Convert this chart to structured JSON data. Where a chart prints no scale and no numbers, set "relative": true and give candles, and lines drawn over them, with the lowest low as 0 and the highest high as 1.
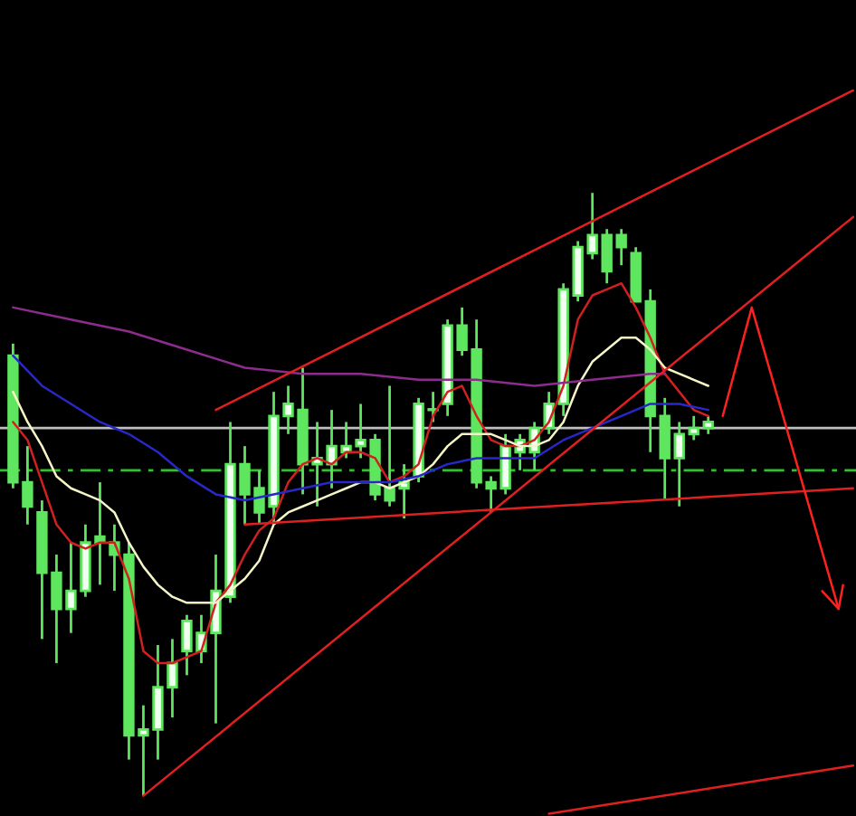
{
  "chart_data": {
    "type": "candlestick",
    "relative": true,
    "color": "#5ee65e",
    "categories": [
      null,
      null,
      null,
      null,
      null,
      null,
      null,
      null,
      null,
      null,
      null,
      null,
      null,
      null,
      null,
      null,
      null,
      null,
      null,
      null,
      null,
      null,
      null,
      null,
      null,
      null,
      null,
      null,
      null,
      null,
      null,
      null,
      null,
      null,
      null,
      null,
      null,
      null,
      null,
      null,
      null,
      null,
      null,
      null,
      null,
      null,
      null,
      null,
      null,
      null,
      null,
      null,
      null,
      null,
      null,
      null,
      null,
      null,
      null
    ],
    "ohlc": [
      [
        0.73,
        0.75,
        0.51,
        0.52
      ],
      [
        0.52,
        0.58,
        0.45,
        0.48
      ],
      [
        0.47,
        0.49,
        0.26,
        0.37
      ],
      [
        0.37,
        0.4,
        0.22,
        0.31
      ],
      [
        0.31,
        0.42,
        0.27,
        0.34
      ],
      [
        0.34,
        0.45,
        0.33,
        0.42
      ],
      [
        0.43,
        0.52,
        0.35,
        0.42
      ],
      [
        0.42,
        0.45,
        0.34,
        0.4
      ],
      [
        0.4,
        0.42,
        0.06,
        0.1
      ],
      [
        0.1,
        0.15,
        0.0,
        0.11
      ],
      [
        0.11,
        0.25,
        0.06,
        0.18
      ],
      [
        0.18,
        0.26,
        0.13,
        0.22
      ],
      [
        0.24,
        0.3,
        0.2,
        0.29
      ],
      [
        0.24,
        0.3,
        0.22,
        0.27
      ],
      [
        0.27,
        0.4,
        0.12,
        0.34
      ],
      [
        0.33,
        0.62,
        0.32,
        0.55
      ],
      [
        0.55,
        0.58,
        0.45,
        0.5
      ],
      [
        0.51,
        0.54,
        0.45,
        0.47
      ],
      [
        0.48,
        0.67,
        0.45,
        0.63
      ],
      [
        0.63,
        0.68,
        0.6,
        0.65
      ],
      [
        0.64,
        0.71,
        0.5,
        0.55
      ],
      [
        0.55,
        0.62,
        0.48,
        0.56
      ],
      [
        0.55,
        0.64,
        0.51,
        0.58
      ],
      [
        0.57,
        0.62,
        0.56,
        0.58
      ],
      [
        0.58,
        0.65,
        0.56,
        0.59
      ],
      [
        0.59,
        0.6,
        0.49,
        0.5
      ],
      [
        0.51,
        0.68,
        0.48,
        0.49
      ],
      [
        0.51,
        0.55,
        0.46,
        0.52
      ],
      [
        0.53,
        0.66,
        0.52,
        0.65
      ],
      [
        0.64,
        0.67,
        0.62,
        0.64
      ],
      [
        0.65,
        0.79,
        0.63,
        0.78
      ],
      [
        0.78,
        0.81,
        0.73,
        0.74
      ],
      [
        0.74,
        0.79,
        0.51,
        0.52
      ],
      [
        0.52,
        0.53,
        0.47,
        0.51
      ],
      [
        0.51,
        0.6,
        0.5,
        0.58
      ],
      [
        0.57,
        0.6,
        0.54,
        0.59
      ],
      [
        0.57,
        0.62,
        0.54,
        0.61
      ],
      [
        0.61,
        0.67,
        0.6,
        0.65
      ],
      [
        0.65,
        0.85,
        0.63,
        0.84
      ],
      [
        0.83,
        0.92,
        0.82,
        0.91
      ],
      [
        0.9,
        1.0,
        0.89,
        0.93
      ],
      [
        0.93,
        0.94,
        0.85,
        0.87
      ],
      [
        0.93,
        0.94,
        0.88,
        0.91
      ],
      [
        0.9,
        0.91,
        0.82,
        0.82
      ],
      [
        0.82,
        0.84,
        0.57,
        0.63
      ],
      [
        0.63,
        0.66,
        0.49,
        0.56
      ],
      [
        0.56,
        0.62,
        0.48,
        0.6
      ],
      [
        0.6,
        0.63,
        0.59,
        0.61
      ],
      [
        0.61,
        0.63,
        0.6,
        0.62
      ],
      null,
      null,
      null,
      null,
      null,
      null,
      null,
      null,
      null,
      null
    ],
    "series": [
      {
        "type": "line",
        "color": "#d02020",
        "values": [
          0.62,
          0.59,
          0.52,
          0.45,
          0.42,
          0.41,
          0.42,
          0.42,
          0.36,
          0.24,
          0.22,
          0.22,
          0.23,
          0.24,
          0.32,
          0.35,
          0.4,
          0.44,
          0.46,
          0.52,
          0.55,
          0.56,
          0.55,
          0.57,
          0.57,
          0.56,
          0.52,
          0.53,
          0.55,
          0.63,
          0.67,
          0.68,
          0.63,
          0.59,
          0.58,
          0.58,
          0.59,
          0.62,
          0.68,
          0.79,
          0.83,
          0.84,
          0.85,
          0.81,
          0.76,
          0.7,
          0.67,
          0.64,
          0.63,
          null,
          null,
          null,
          null,
          null,
          null,
          null,
          null,
          null,
          null
        ]
      },
      {
        "type": "line",
        "color": "#f5f5c8",
        "values": [
          0.67,
          0.62,
          0.58,
          0.53,
          0.51,
          0.5,
          0.49,
          0.47,
          0.42,
          0.38,
          0.35,
          0.33,
          0.32,
          0.32,
          0.32,
          0.34,
          0.36,
          0.39,
          0.45,
          0.47,
          0.48,
          0.49,
          0.5,
          0.51,
          0.52,
          0.52,
          0.51,
          0.52,
          0.53,
          0.55,
          0.58,
          0.6,
          0.6,
          0.6,
          0.59,
          0.58,
          0.58,
          0.59,
          0.62,
          0.68,
          0.72,
          0.74,
          0.76,
          0.76,
          0.74,
          0.71,
          0.7,
          0.69,
          0.68,
          null,
          null,
          null,
          null,
          null,
          null,
          null,
          null,
          null,
          null
        ]
      },
      {
        "type": "line",
        "color": "#2828c8",
        "values": [
          0.73,
          null,
          0.68,
          null,
          0.65,
          null,
          0.62,
          null,
          0.6,
          null,
          0.57,
          null,
          0.53,
          null,
          0.5,
          null,
          0.49,
          null,
          0.5,
          null,
          0.51,
          null,
          0.52,
          null,
          0.52,
          null,
          0.52,
          null,
          0.53,
          null,
          0.55,
          null,
          0.56,
          null,
          0.56,
          null,
          0.56,
          null,
          0.59,
          null,
          0.61,
          null,
          0.63,
          null,
          0.65,
          null,
          0.65,
          null,
          0.64,
          null,
          null,
          null,
          null,
          null,
          null,
          null,
          null,
          null,
          null
        ]
      },
      {
        "type": "line",
        "color": "#8c2c8c",
        "values": [
          0.81,
          null,
          null,
          null,
          0.79,
          null,
          null,
          null,
          0.77,
          null,
          null,
          null,
          0.74,
          null,
          null,
          null,
          0.71,
          null,
          null,
          null,
          0.7,
          null,
          null,
          null,
          0.7,
          null,
          null,
          null,
          0.69,
          null,
          null,
          null,
          0.69,
          null,
          null,
          null,
          0.68,
          null,
          null,
          null,
          0.69,
          null,
          null,
          null,
          0.7,
          0.7,
          null,
          null,
          null,
          null,
          null,
          null,
          null,
          null,
          null,
          null,
          null,
          null,
          null
        ]
      },
      {
        "type": "line",
        "color": "#e02020",
        "values": [
          null,
          null,
          null,
          null,
          null,
          null,
          null,
          null,
          null,
          null,
          null,
          null,
          null,
          null,
          0.64,
          null,
          null,
          null,
          null,
          null,
          null,
          null,
          null,
          null,
          null,
          null,
          null,
          null,
          null,
          null,
          null,
          null,
          null,
          null,
          null,
          null,
          null,
          null,
          null,
          null,
          null,
          null,
          null,
          null,
          null,
          null,
          null,
          null,
          null,
          null,
          null,
          null,
          null,
          null,
          null,
          null,
          null,
          null,
          1.17
        ]
      },
      {
        "type": "line",
        "color": "#e02020",
        "values": [
          null,
          null,
          null,
          null,
          null,
          null,
          null,
          null,
          null,
          0.0,
          null,
          null,
          null,
          null,
          null,
          null,
          null,
          null,
          null,
          null,
          null,
          null,
          null,
          null,
          null,
          null,
          null,
          null,
          null,
          null,
          null,
          null,
          null,
          null,
          null,
          null,
          null,
          null,
          null,
          null,
          null,
          null,
          null,
          null,
          null,
          null,
          null,
          null,
          null,
          null,
          null,
          null,
          null,
          null,
          null,
          null,
          null,
          null,
          0.96
        ]
      },
      {
        "type": "line",
        "color": "#e02020",
        "values": [
          null,
          null,
          null,
          null,
          null,
          null,
          null,
          null,
          null,
          null,
          null,
          null,
          null,
          null,
          null,
          null,
          0.45,
          null,
          null,
          null,
          null,
          null,
          null,
          null,
          null,
          null,
          null,
          null,
          null,
          null,
          null,
          null,
          null,
          null,
          null,
          null,
          null,
          null,
          null,
          null,
          null,
          null,
          null,
          null,
          null,
          null,
          null,
          null,
          null,
          null,
          null,
          null,
          null,
          null,
          null,
          null,
          null,
          null,
          0.51
        ]
      },
      {
        "type": "line",
        "color": "#e02020",
        "values": [
          null,
          null,
          null,
          null,
          null,
          null,
          null,
          null,
          null,
          null,
          null,
          null,
          null,
          null,
          null,
          null,
          null,
          null,
          null,
          null,
          null,
          null,
          null,
          null,
          null,
          null,
          null,
          null,
          null,
          null,
          null,
          null,
          null,
          null,
          null,
          null,
          null,
          -0.03,
          null,
          null,
          null,
          null,
          null,
          null,
          null,
          null,
          null,
          null,
          null,
          null,
          null,
          null,
          null,
          null,
          null,
          null,
          null,
          null,
          0.05
        ]
      },
      {
        "type": "line",
        "color": "#ff2020",
        "values": [
          null,
          null,
          null,
          null,
          null,
          null,
          null,
          null,
          null,
          null,
          null,
          null,
          null,
          null,
          null,
          null,
          null,
          null,
          null,
          null,
          null,
          null,
          null,
          null,
          null,
          null,
          null,
          null,
          null,
          null,
          null,
          null,
          null,
          null,
          null,
          null,
          null,
          null,
          null,
          null,
          null,
          null,
          null,
          null,
          null,
          null,
          null,
          null,
          null,
          0.63,
          null,
          0.81,
          null,
          null,
          null,
          null,
          null,
          0.31,
          null
        ]
      }
    ],
    "ref_lines": [
      {
        "axis": "y",
        "value": 0.61,
        "color": "#c0c0c0",
        "line_style": "solid"
      },
      {
        "axis": "y",
        "value": 0.54,
        "color": "#30c030",
        "line_style": "dashed"
      }
    ]
  }
}
